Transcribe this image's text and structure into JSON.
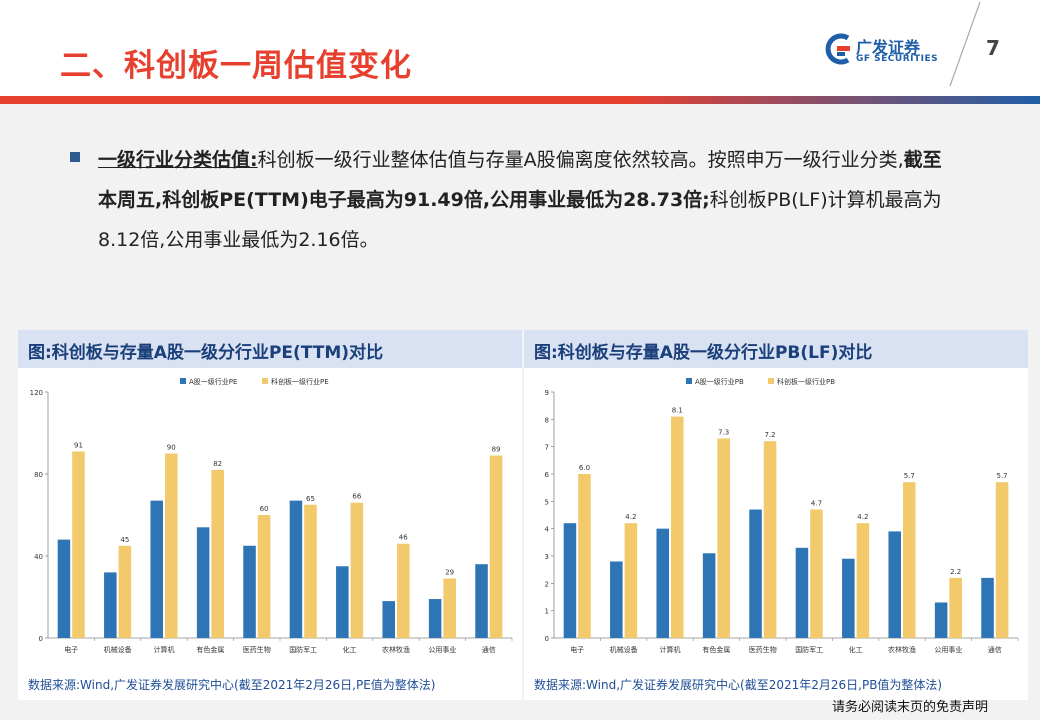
{
  "header": {
    "title": "二、科创板一周估值变化",
    "logo_cn": "广发证券",
    "logo_en": "GF SECURITIES",
    "page_number": "7"
  },
  "bullet": {
    "label": "一级行业分类估值:",
    "text1": "科创板一级行业整体估值与存量A股偏离度依然较高。按照申万一级行业分类,",
    "bold": "截至本周五,科创板PE(TTM)电子最高为91.49倍,公用事业最低为28.73倍;",
    "text2": "科创板PB(LF)计算机最高为8.12倍,公用事业最低为2.16倍。"
  },
  "footer": "请务必阅读末页的免责声明",
  "chart_data": [
    {
      "type": "bar",
      "title": "图:科创板与存量A股一级分行业PE(TTM)对比",
      "source": "数据来源:Wind,广发证券发展研究中心(截至2021年2月26日,PE值为整体法)",
      "categories": [
        "电子",
        "机械设备",
        "计算机",
        "有色金属",
        "医药生物",
        "国防军工",
        "化工",
        "农林牧渔",
        "公用事业",
        "通信"
      ],
      "ylim": [
        0,
        120
      ],
      "yticks": [
        0,
        40,
        80,
        120
      ],
      "series": [
        {
          "name": "A股一级行业PE",
          "color": "#2e75b6",
          "values": [
            48,
            32,
            67,
            54,
            45,
            67,
            35,
            18,
            19,
            36
          ]
        },
        {
          "name": "科创板一级行业PE",
          "color": "#f2c96b",
          "values": [
            91,
            45,
            90,
            82,
            60,
            65,
            66,
            46,
            29,
            89
          ]
        }
      ],
      "labels": [
        "91",
        "45",
        "90",
        "82",
        "60",
        "65",
        "66",
        "46",
        "29",
        "89"
      ]
    },
    {
      "type": "bar",
      "title": "图:科创板与存量A股一级分行业PB(LF)对比",
      "source": "数据来源:Wind,广发证券发展研究中心(截至2021年2月26日,PB值为整体法)",
      "categories": [
        "电子",
        "机械设备",
        "计算机",
        "有色金属",
        "医药生物",
        "国防军工",
        "化工",
        "农林牧渔",
        "公用事业",
        "通信"
      ],
      "ylim": [
        0,
        9
      ],
      "yticks": [
        0,
        1,
        2,
        3,
        4,
        5,
        6,
        7,
        8,
        9
      ],
      "series": [
        {
          "name": "A股一级行业PB",
          "color": "#2e75b6",
          "values": [
            4.2,
            2.8,
            4.0,
            3.1,
            4.7,
            3.3,
            2.9,
            3.9,
            1.3,
            2.2
          ]
        },
        {
          "name": "科创板一级行业PB",
          "color": "#f2c96b",
          "values": [
            6.0,
            4.2,
            8.1,
            7.3,
            7.2,
            4.7,
            4.2,
            5.7,
            2.2,
            5.7
          ]
        }
      ],
      "labels": [
        "6.0",
        "4.2",
        "8.1",
        "7.3",
        "7.2",
        "4.7",
        "4.2",
        "5.7",
        "2.2",
        "5.7"
      ]
    }
  ]
}
